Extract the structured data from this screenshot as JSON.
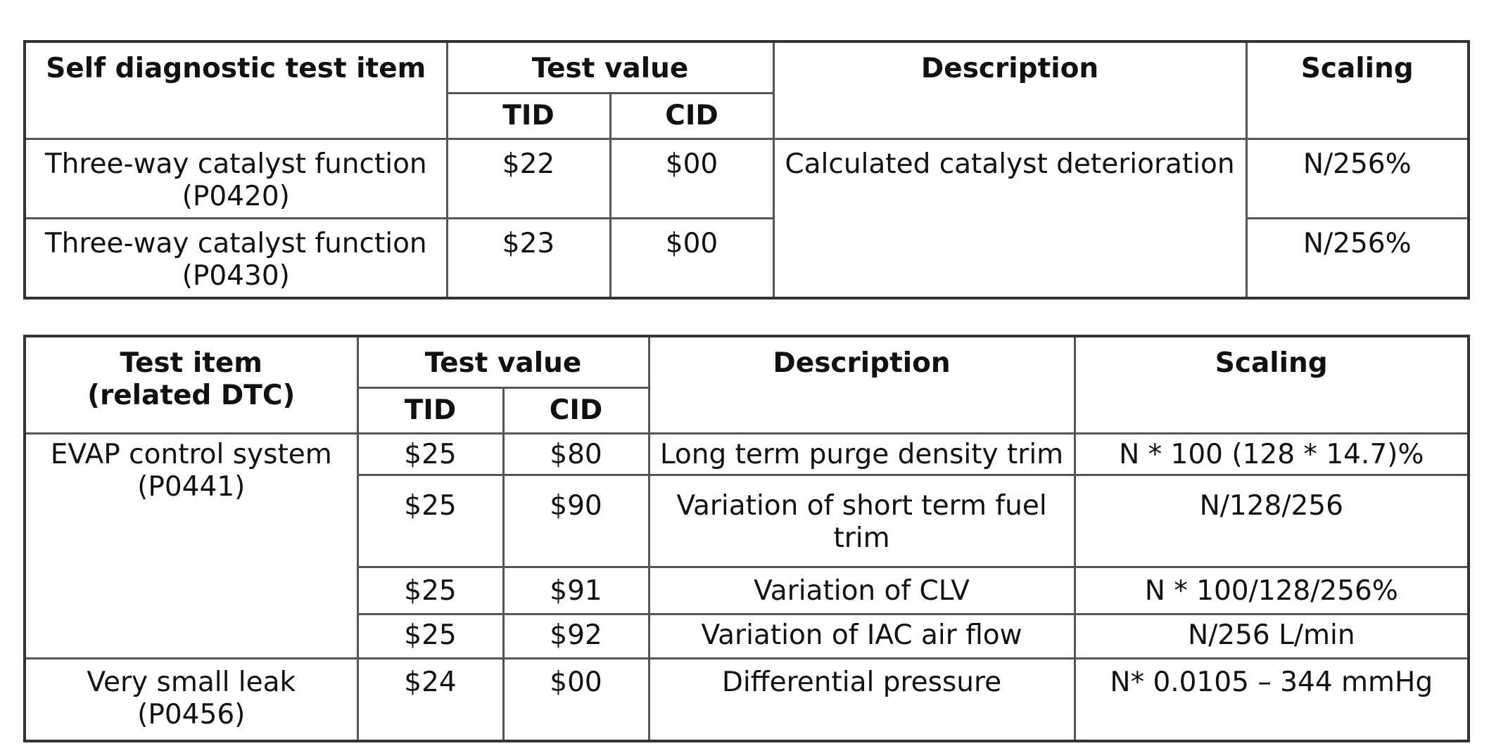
{
  "table1": {
    "headers": {
      "item": "Self diagnostic test item",
      "test_value": "Test value",
      "tid": "TID",
      "cid": "CID",
      "description": "Description",
      "scaling": "Scaling"
    },
    "rows": [
      {
        "item": "Three-way catalyst function\n(P0420)",
        "tid": "$22",
        "cid": "$00",
        "description": "Calculated catalyst deterioration",
        "scaling": "N/256%"
      },
      {
        "item": "Three-way catalyst function\n(P0430)",
        "tid": "$23",
        "cid": "$00",
        "scaling": "N/256%"
      }
    ]
  },
  "table2": {
    "headers": {
      "item": "Test item\n(related DTC)",
      "test_value": "Test value",
      "tid": "TID",
      "cid": "CID",
      "description": "Description",
      "scaling": "Scaling"
    },
    "groups": [
      {
        "item": "EVAP control system\n(P0441)",
        "rows": [
          {
            "tid": "$25",
            "cid": "$80",
            "description": "Long term purge density trim",
            "scaling": "N * 100 (128 * 14.7)%"
          },
          {
            "tid": "$25",
            "cid": "$90",
            "description": "Variation of short term fuel\ntrim",
            "scaling": "N/128/256"
          },
          {
            "tid": "$25",
            "cid": "$91",
            "description": "Variation of CLV",
            "scaling": "N * 100/128/256%"
          },
          {
            "tid": "$25",
            "cid": "$92",
            "description": "Variation of IAC air flow",
            "scaling": "N/256 L/min"
          }
        ]
      },
      {
        "item": "Very small leak\n(P0456)",
        "rows": [
          {
            "tid": "$24",
            "cid": "$00",
            "description": "Differential pressure",
            "scaling": "N* 0.0105 – 344 mmHg"
          }
        ]
      }
    ]
  }
}
